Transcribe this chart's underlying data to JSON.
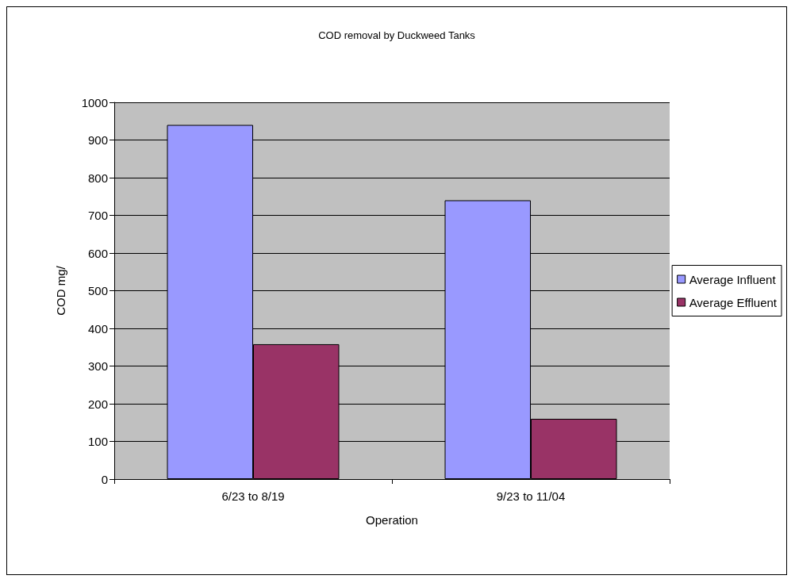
{
  "chart_data": {
    "type": "bar",
    "title": "COD removal by Duckweed Tanks",
    "xlabel": "Operation",
    "ylabel": "COD mg/",
    "categories": [
      "6/23 to 8/19",
      "9/23 to 11/04"
    ],
    "series": [
      {
        "name": "Average Influent",
        "color": "#9999ff",
        "values": [
          940,
          740
        ]
      },
      {
        "name": "Average Effluent",
        "color": "#993366",
        "values": [
          358,
          160
        ]
      }
    ],
    "ylim": [
      0,
      1000
    ],
    "yticks": [
      0,
      100,
      200,
      300,
      400,
      500,
      600,
      700,
      800,
      900,
      1000
    ],
    "grid": "y",
    "legend": "right"
  }
}
